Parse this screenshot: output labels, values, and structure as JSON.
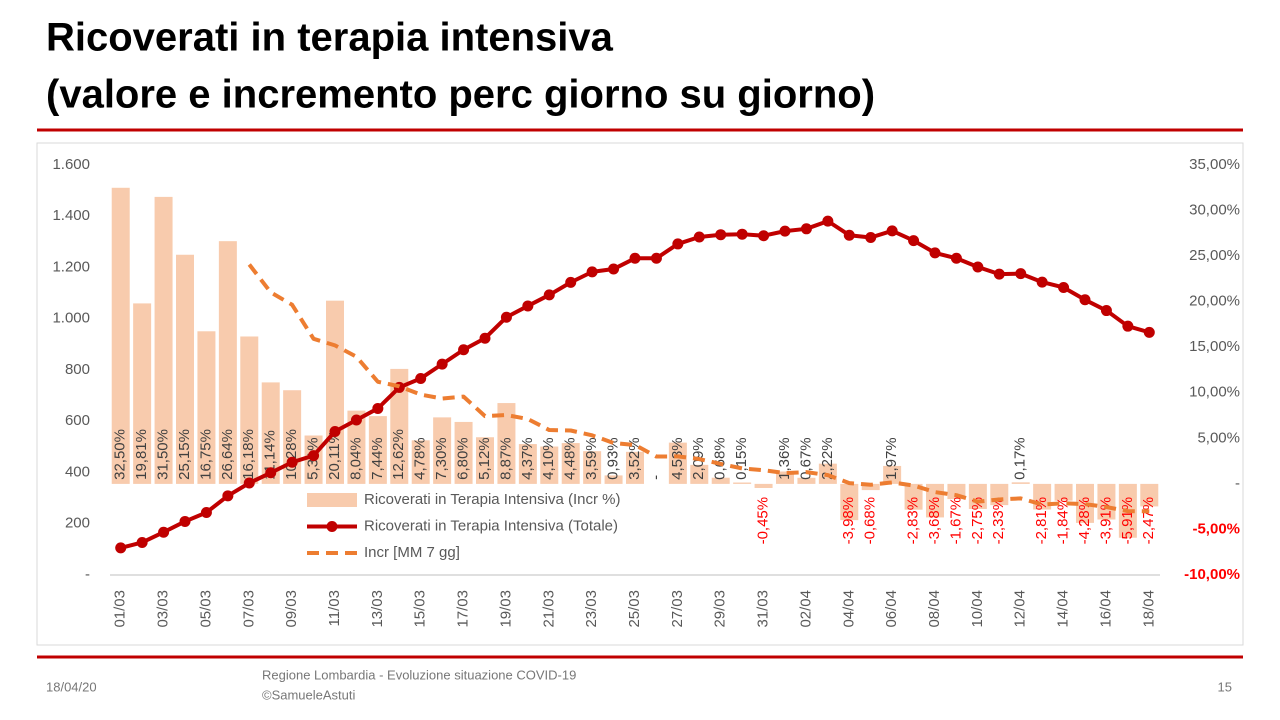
{
  "chart_data": {
    "type": "combo",
    "title": "Ricoverati in terapia intensiva",
    "subtitle": "(valore e incremento perc giorno su giorno)",
    "categories": [
      "01/03",
      null,
      "03/03",
      null,
      "05/03",
      null,
      "07/03",
      null,
      "09/03",
      null,
      "11/03",
      null,
      "13/03",
      null,
      "15/03",
      null,
      "17/03",
      null,
      "19/03",
      null,
      "21/03",
      null,
      "23/03",
      null,
      "25/03",
      null,
      "27/03",
      null,
      "29/03",
      null,
      "31/03",
      null,
      "02/04",
      null,
      "04/04",
      null,
      "06/04",
      null,
      "08/04",
      null,
      "10/04",
      null,
      "12/04",
      null,
      "14/04",
      null,
      "16/04",
      null,
      "18/04"
    ],
    "series": [
      {
        "name": "Ricoverati in Terapia Intensiva (Incr %)",
        "type": "bar",
        "axis": "y2",
        "color": "#f8cbad",
        "values": [
          32.5,
          19.81,
          31.5,
          25.15,
          16.75,
          26.64,
          16.18,
          11.14,
          10.28,
          5.31,
          20.11,
          8.04,
          7.44,
          12.62,
          4.78,
          7.3,
          6.8,
          5.12,
          8.87,
          4.37,
          4.1,
          4.48,
          3.59,
          0.93,
          3.52,
          0,
          4.53,
          2.09,
          0.68,
          0.15,
          -0.45,
          1.36,
          0.67,
          2.22,
          -3.98,
          -0.68,
          1.97,
          -2.83,
          -3.68,
          -1.67,
          -2.75,
          -2.33,
          0.17,
          -2.81,
          -1.84,
          -4.28,
          -3.91,
          -5.91,
          -2.47
        ],
        "value_labels": [
          "32,50%",
          "19,81%",
          "31,50%",
          "25,15%",
          "16,75%",
          "26,64%",
          "16,18%",
          "11,14%",
          "10,28%",
          "5,31%",
          "20,11%",
          "8,04%",
          "7,44%",
          "12,62%",
          "4,78%",
          "7,30%",
          "6,80%",
          "5,12%",
          "8,87%",
          "4,37%",
          "4,10%",
          "4,48%",
          "3,59%",
          "0,93%",
          "3,52%",
          "-",
          "4,53%",
          "2,09%",
          "0,68%",
          "0,15%",
          "-0,45%",
          "1,36%",
          "0,67%",
          "2,22%",
          "-3,98%",
          "-0,68%",
          "1,97%",
          "-2,83%",
          "-3,68%",
          "-1,67%",
          "-2,75%",
          "-2,33%",
          "0,17%",
          "-2,81%",
          "-1,84%",
          "-4,28%",
          "-3,91%",
          "-5,91%",
          "-2,47%"
        ]
      },
      {
        "name": "Ricoverati in Terapia Intensiva (Totale)",
        "type": "line",
        "axis": "y",
        "color": "#c00000",
        "markers": true,
        "values": [
          106,
          127,
          167,
          209,
          244,
          309,
          359,
          399,
          440,
          466,
          560,
          605,
          650,
          732,
          767,
          823,
          879,
          924,
          1006,
          1050,
          1093,
          1142,
          1183,
          1194,
          1236,
          1236,
          1292,
          1319,
          1328,
          1330,
          1324,
          1342,
          1351,
          1381,
          1326,
          1317,
          1343,
          1305,
          1257,
          1236,
          1202,
          1174,
          1176,
          1143,
          1122,
          1074,
          1032,
          971,
          947
        ]
      },
      {
        "name": "Incr [MM 7 gg]",
        "type": "line",
        "axis": "y2",
        "color": "#ed7d31",
        "dashed": true,
        "values": [
          null,
          null,
          null,
          null,
          null,
          null,
          24.08,
          21.02,
          19.66,
          15.92,
          15.2,
          13.96,
          11.21,
          10.71,
          9.8,
          9.37,
          9.58,
          7.44,
          7.56,
          7.12,
          5.91,
          5.86,
          5.33,
          4.49,
          4.27,
          3.0,
          3.02,
          2.73,
          2.19,
          1.7,
          1.5,
          1.19,
          1.29,
          0.96,
          0.09,
          -0.1,
          0.16,
          -0.18,
          -0.9,
          -1.24,
          -1.95,
          -1.71,
          -1.59,
          -2.27,
          -2.13,
          -2.22,
          -2.54,
          -2.99,
          -3.01
        ]
      }
    ],
    "ylim": [
      0,
      1600
    ],
    "yticks": [
      {
        "value": 0,
        "label": "-"
      },
      200,
      400,
      600,
      800,
      {
        "value": 1000,
        "label": "1.000"
      },
      {
        "value": 1200,
        "label": "1.200"
      },
      {
        "value": 1400,
        "label": "1.400"
      },
      {
        "value": 1600,
        "label": "1.600"
      }
    ],
    "y2lim": [
      -10,
      35
    ],
    "y2ticks": [
      {
        "value": -10,
        "label": "-10,00%"
      },
      {
        "value": -5,
        "label": "-5,00%"
      },
      {
        "value": 0,
        "label": "-"
      },
      {
        "value": 5,
        "label": "5,00%"
      },
      {
        "value": 10,
        "label": "10,00%"
      },
      {
        "value": 15,
        "label": "15,00%"
      },
      {
        "value": 20,
        "label": "20,00%"
      },
      {
        "value": 25,
        "label": "25,00%"
      },
      {
        "value": 30,
        "label": "30,00%"
      },
      {
        "value": 35,
        "label": "35,00%"
      }
    ],
    "grid": false,
    "legend": "bottom-left",
    "negative_label_color": "#ff0000"
  },
  "footer": {
    "date": "18/04/20",
    "source": "Regione Lombardia - Evoluzione situazione COVID-19",
    "author": "©SamueleAstuti",
    "page": "15"
  }
}
